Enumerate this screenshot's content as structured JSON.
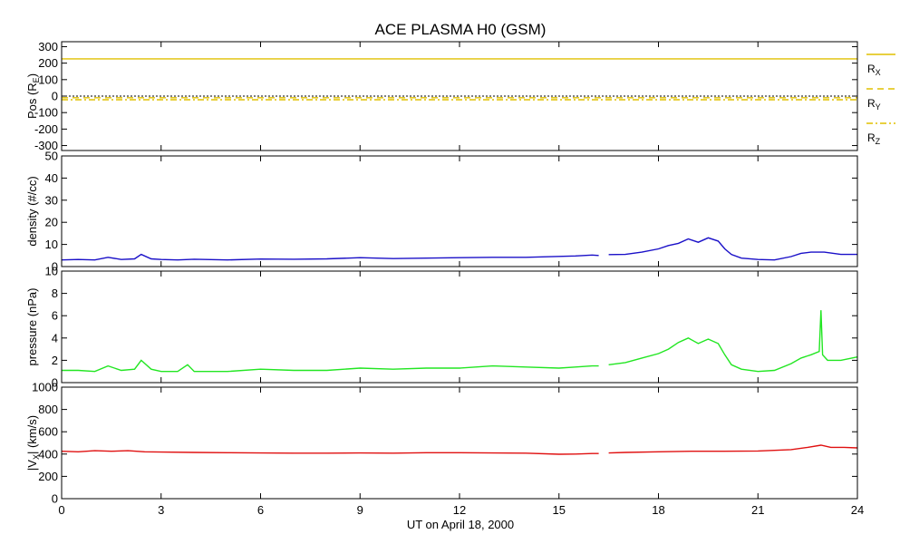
{
  "chart_data": {
    "title": "ACE PLASMA H0 (GSM)",
    "xlabel": "UT on April 18, 2000",
    "x_ticks": [
      0,
      3,
      6,
      9,
      12,
      15,
      18,
      21,
      24
    ],
    "xlim": [
      0,
      24
    ],
    "panels": [
      {
        "type": "line",
        "ylabel": "Pos (RE)",
        "ylabel_main": "Pos (R",
        "ylabel_sub": "E",
        "ylabel_end": ")",
        "ylim": [
          -330,
          330
        ],
        "y_ticks": [
          -300,
          -200,
          -100,
          0,
          100,
          200,
          300
        ],
        "series": [
          {
            "name": "RX",
            "name_main": "R",
            "name_sub": "X",
            "color": "#e0c000",
            "dash": "solid",
            "x": [
              0,
              24
            ],
            "values": [
              226,
              226
            ]
          },
          {
            "name": "RY",
            "name_main": "R",
            "name_sub": "Y",
            "color": "#e0c000",
            "dash": "dashed",
            "x": [
              0,
              24
            ],
            "values": [
              -10,
              -10
            ]
          },
          {
            "name": "RZ",
            "name_main": "R",
            "name_sub": "Z",
            "color": "#e0c000",
            "dash": "dashdot",
            "x": [
              0,
              24
            ],
            "values": [
              -22,
              -22
            ]
          }
        ],
        "zero_line": true
      },
      {
        "type": "line",
        "ylabel": "density (#/cc)",
        "ylim": [
          0,
          50
        ],
        "y_ticks": [
          0,
          10,
          20,
          30,
          40,
          50
        ],
        "series": [
          {
            "name": "density",
            "color": "#1a10c8",
            "x": [
              0,
              0.5,
              1.0,
              1.4,
              1.8,
              2.2,
              2.4,
              2.7,
              3.0,
              3.5,
              4.0,
              5.0,
              6.0,
              7.0,
              8.0,
              9.0,
              10.0,
              11.0,
              12.0,
              13.0,
              14.0,
              15.0,
              15.5,
              16.0,
              16.2,
              16.3,
              16.5,
              17.0,
              17.5,
              18.0,
              18.3,
              18.6,
              18.9,
              19.2,
              19.5,
              19.8,
              20.0,
              20.2,
              20.5,
              21.0,
              21.5,
              22.0,
              22.3,
              22.6,
              23.0,
              23.5,
              24.0
            ],
            "values": [
              3.0,
              3.2,
              3.0,
              4.2,
              3.2,
              3.5,
              5.5,
              3.5,
              3.2,
              3.0,
              3.3,
              3.0,
              3.4,
              3.3,
              3.5,
              4.0,
              3.6,
              3.8,
              4.0,
              4.2,
              4.2,
              4.6,
              4.8,
              5.2,
              5.0,
              null,
              5.4,
              5.5,
              6.5,
              8.0,
              9.5,
              10.5,
              12.5,
              11.0,
              13.0,
              11.5,
              8.0,
              5.5,
              3.8,
              3.2,
              3.0,
              4.5,
              6.0,
              6.5,
              6.5,
              5.5,
              5.5
            ]
          }
        ]
      },
      {
        "type": "line",
        "ylabel": "pressure (nPa)",
        "ylim": [
          0,
          10
        ],
        "y_ticks": [
          0,
          2,
          4,
          6,
          8,
          10
        ],
        "series": [
          {
            "name": "pressure",
            "color": "#22e622",
            "x": [
              0,
              0.5,
              1.0,
              1.4,
              1.8,
              2.2,
              2.4,
              2.7,
              3.0,
              3.5,
              3.8,
              4.0,
              5.0,
              6.0,
              7.0,
              8.0,
              9.0,
              10.0,
              11.0,
              12.0,
              13.0,
              14.0,
              15.0,
              15.5,
              16.0,
              16.2,
              16.3,
              16.5,
              17.0,
              17.5,
              18.0,
              18.3,
              18.6,
              18.9,
              19.2,
              19.5,
              19.8,
              20.0,
              20.2,
              20.5,
              21.0,
              21.5,
              22.0,
              22.3,
              22.6,
              22.85,
              22.9,
              22.95,
              23.1,
              23.5,
              24.0
            ],
            "values": [
              1.1,
              1.1,
              1.0,
              1.5,
              1.1,
              1.2,
              2.0,
              1.2,
              1.0,
              1.0,
              1.6,
              1.0,
              1.0,
              1.2,
              1.1,
              1.1,
              1.3,
              1.2,
              1.3,
              1.3,
              1.5,
              1.4,
              1.3,
              1.4,
              1.5,
              1.5,
              null,
              1.6,
              1.8,
              2.2,
              2.6,
              3.0,
              3.6,
              4.0,
              3.5,
              3.9,
              3.5,
              2.5,
              1.6,
              1.2,
              1.0,
              1.1,
              1.7,
              2.2,
              2.5,
              2.8,
              6.5,
              2.5,
              2.0,
              2.0,
              2.3
            ]
          }
        ]
      },
      {
        "type": "line",
        "ylabel": "|VX| (km/s)",
        "ylabel_main": "|V",
        "ylabel_sub": "X",
        "ylabel_end": "| (km/s)",
        "ylim": [
          0,
          1000
        ],
        "y_ticks": [
          0,
          200,
          400,
          600,
          800,
          1000
        ],
        "series": [
          {
            "name": "|Vx|",
            "color": "#e01010",
            "x": [
              0,
              0.5,
              1.0,
              1.5,
              2.0,
              2.5,
              3.0,
              4.0,
              5.0,
              6.0,
              7.0,
              8.0,
              9.0,
              10.0,
              11.0,
              12.0,
              13.0,
              14.0,
              15.0,
              15.5,
              16.0,
              16.2,
              16.3,
              16.5,
              17.0,
              18.0,
              19.0,
              20.0,
              21.0,
              22.0,
              22.5,
              22.9,
              23.2,
              23.6,
              24.0
            ],
            "values": [
              425,
              420,
              430,
              425,
              430,
              420,
              418,
              415,
              412,
              410,
              408,
              408,
              410,
              408,
              412,
              412,
              410,
              408,
              398,
              400,
              405,
              405,
              null,
              410,
              415,
              420,
              425,
              425,
              428,
              440,
              460,
              480,
              460,
              460,
              455
            ]
          }
        ]
      }
    ]
  }
}
